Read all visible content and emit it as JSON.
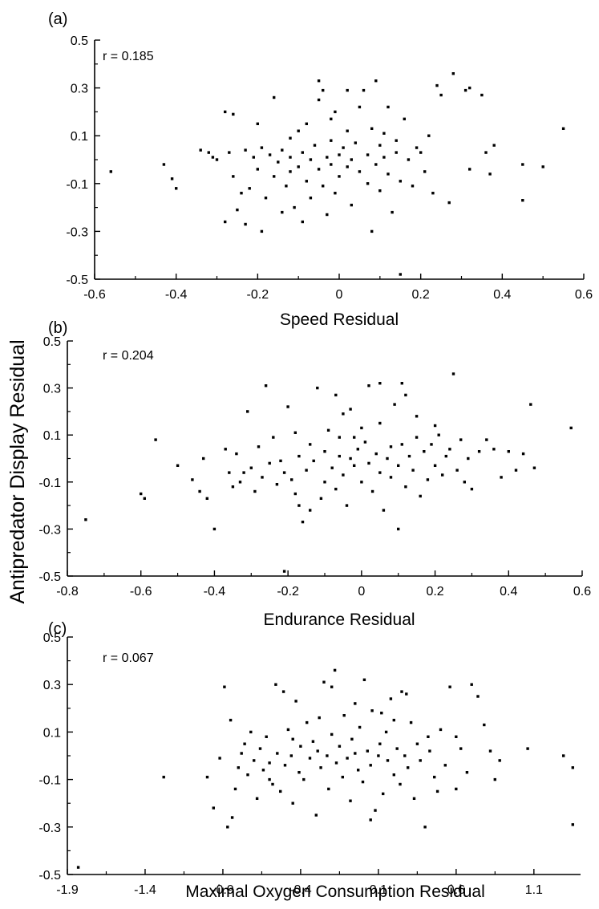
{
  "ylabel": "Antipredator Display Residual",
  "chart_data": [
    {
      "type": "scatter",
      "panel_label": "(a)",
      "annotation": "r = 0.185",
      "xlabel": "Speed Residual",
      "xlim": [
        -0.6,
        0.6
      ],
      "ylim": [
        -0.5,
        0.5
      ],
      "xticks": [
        -0.6,
        -0.4,
        -0.2,
        0,
        0.2,
        0.4,
        0.6
      ],
      "xtick_labels": [
        "-0.6",
        "-0.4",
        "-0.2",
        "0",
        "0.2",
        "0.4",
        "0.6"
      ],
      "yticks": [
        -0.5,
        -0.3,
        -0.1,
        0.1,
        0.3,
        0.5
      ],
      "ytick_labels": [
        "-0.5",
        "-0.3",
        "-0.1",
        "0.1",
        "0.3",
        "0.5"
      ],
      "points": [
        [
          -0.56,
          -0.05
        ],
        [
          -0.43,
          -0.02
        ],
        [
          -0.41,
          -0.08
        ],
        [
          -0.4,
          -0.12
        ],
        [
          -0.34,
          0.04
        ],
        [
          -0.32,
          0.03
        ],
        [
          -0.31,
          0.01
        ],
        [
          -0.3,
          0.0
        ],
        [
          -0.28,
          0.2
        ],
        [
          -0.28,
          -0.26
        ],
        [
          -0.27,
          0.03
        ],
        [
          -0.26,
          0.19
        ],
        [
          -0.26,
          -0.07
        ],
        [
          -0.25,
          -0.21
        ],
        [
          -0.24,
          -0.14
        ],
        [
          -0.23,
          0.04
        ],
        [
          -0.23,
          -0.27
        ],
        [
          -0.22,
          -0.12
        ],
        [
          -0.21,
          0.01
        ],
        [
          -0.2,
          -0.04
        ],
        [
          -0.2,
          0.15
        ],
        [
          -0.19,
          -0.3
        ],
        [
          -0.19,
          0.05
        ],
        [
          -0.18,
          -0.16
        ],
        [
          -0.17,
          0.02
        ],
        [
          -0.16,
          -0.07
        ],
        [
          -0.16,
          0.26
        ],
        [
          -0.15,
          -0.01
        ],
        [
          -0.14,
          -0.22
        ],
        [
          -0.14,
          0.04
        ],
        [
          -0.13,
          -0.11
        ],
        [
          -0.12,
          0.01
        ],
        [
          -0.12,
          -0.05
        ],
        [
          -0.11,
          -0.2
        ],
        [
          -0.1,
          0.12
        ],
        [
          -0.1,
          -0.03
        ],
        [
          -0.09,
          0.03
        ],
        [
          -0.09,
          -0.26
        ],
        [
          -0.08,
          -0.09
        ],
        [
          -0.08,
          0.15
        ],
        [
          -0.07,
          0.0
        ],
        [
          -0.07,
          -0.16
        ],
        [
          -0.06,
          0.06
        ],
        [
          -0.05,
          0.25
        ],
        [
          -0.05,
          -0.04
        ],
        [
          -0.04,
          0.29
        ],
        [
          -0.04,
          -0.11
        ],
        [
          -0.03,
          0.01
        ],
        [
          -0.03,
          -0.23
        ],
        [
          -0.02,
          0.08
        ],
        [
          -0.02,
          -0.02
        ],
        [
          -0.01,
          0.2
        ],
        [
          -0.01,
          -0.14
        ],
        [
          0.0,
          0.02
        ],
        [
          0.0,
          -0.07
        ],
        [
          0.01,
          0.05
        ],
        [
          0.02,
          -0.03
        ],
        [
          0.02,
          0.12
        ],
        [
          0.03,
          0.0
        ],
        [
          0.03,
          -0.19
        ],
        [
          0.04,
          0.07
        ],
        [
          0.05,
          -0.05
        ],
        [
          0.06,
          0.29
        ],
        [
          0.07,
          -0.1
        ],
        [
          0.07,
          0.02
        ],
        [
          0.08,
          -0.3
        ],
        [
          0.08,
          0.13
        ],
        [
          0.09,
          -0.02
        ],
        [
          0.1,
          0.06
        ],
        [
          0.1,
          -0.13
        ],
        [
          0.11,
          0.01
        ],
        [
          0.12,
          0.22
        ],
        [
          0.12,
          -0.06
        ],
        [
          0.13,
          -0.22
        ],
        [
          0.14,
          0.03
        ],
        [
          0.15,
          -0.09
        ],
        [
          0.15,
          -0.48
        ],
        [
          0.16,
          0.17
        ],
        [
          0.17,
          0.0
        ],
        [
          0.18,
          -0.11
        ],
        [
          0.19,
          0.05
        ],
        [
          0.2,
          0.03
        ],
        [
          0.21,
          -0.05
        ],
        [
          0.22,
          0.1
        ],
        [
          0.23,
          -0.14
        ],
        [
          0.24,
          0.31
        ],
        [
          0.25,
          0.27
        ],
        [
          0.27,
          -0.18
        ],
        [
          0.28,
          0.36
        ],
        [
          0.31,
          0.29
        ],
        [
          0.32,
          0.3
        ],
        [
          0.32,
          -0.04
        ],
        [
          0.35,
          0.27
        ],
        [
          0.36,
          0.03
        ],
        [
          0.37,
          -0.06
        ],
        [
          0.38,
          0.06
        ],
        [
          0.45,
          -0.02
        ],
        [
          0.45,
          -0.17
        ],
        [
          0.5,
          -0.03
        ],
        [
          0.55,
          0.13
        ],
        [
          -0.05,
          0.33
        ],
        [
          0.02,
          0.29
        ],
        [
          0.09,
          0.33
        ],
        [
          0.05,
          0.22
        ],
        [
          -0.02,
          0.17
        ],
        [
          0.11,
          0.11
        ],
        [
          -0.12,
          0.09
        ],
        [
          0.14,
          0.08
        ]
      ]
    },
    {
      "type": "scatter",
      "panel_label": "(b)",
      "annotation": "r = 0.204",
      "xlabel": "Endurance Residual",
      "xlim": [
        -0.8,
        0.6
      ],
      "ylim": [
        -0.5,
        0.5
      ],
      "xticks": [
        -0.8,
        -0.6,
        -0.4,
        -0.2,
        0,
        0.2,
        0.4,
        0.6
      ],
      "xtick_labels": [
        "-0.8",
        "-0.6",
        "-0.4",
        "-0.2",
        "0",
        "0.2",
        "0.4",
        "0.6"
      ],
      "yticks": [
        -0.5,
        -0.3,
        -0.1,
        0.1,
        0.3,
        0.5
      ],
      "ytick_labels": [
        "-0.5",
        "-0.3",
        "-0.1",
        "0.1",
        "0.3",
        "0.5"
      ],
      "points": [
        [
          -0.75,
          -0.26
        ],
        [
          -0.6,
          -0.15
        ],
        [
          -0.59,
          -0.17
        ],
        [
          -0.56,
          0.08
        ],
        [
          -0.5,
          -0.03
        ],
        [
          -0.46,
          -0.09
        ],
        [
          -0.44,
          -0.14
        ],
        [
          -0.43,
          0.0
        ],
        [
          -0.42,
          -0.17
        ],
        [
          -0.4,
          -0.3
        ],
        [
          -0.37,
          0.04
        ],
        [
          -0.36,
          -0.06
        ],
        [
          -0.35,
          -0.12
        ],
        [
          -0.34,
          0.02
        ],
        [
          -0.33,
          -0.1
        ],
        [
          -0.32,
          -0.06
        ],
        [
          -0.31,
          0.2
        ],
        [
          -0.3,
          -0.04
        ],
        [
          -0.29,
          -0.14
        ],
        [
          -0.28,
          0.05
        ],
        [
          -0.27,
          -0.08
        ],
        [
          -0.26,
          0.31
        ],
        [
          -0.25,
          -0.02
        ],
        [
          -0.24,
          0.09
        ],
        [
          -0.23,
          -0.11
        ],
        [
          -0.22,
          -0.01
        ],
        [
          -0.21,
          -0.48
        ],
        [
          -0.21,
          -0.06
        ],
        [
          -0.2,
          0.22
        ],
        [
          -0.19,
          -0.09
        ],
        [
          -0.18,
          -0.15
        ],
        [
          -0.17,
          0.01
        ],
        [
          -0.17,
          -0.2
        ],
        [
          -0.16,
          -0.27
        ],
        [
          -0.15,
          -0.05
        ],
        [
          -0.14,
          0.06
        ],
        [
          -0.14,
          -0.22
        ],
        [
          -0.13,
          -0.01
        ],
        [
          -0.12,
          0.3
        ],
        [
          -0.11,
          -0.17
        ],
        [
          -0.1,
          0.03
        ],
        [
          -0.1,
          -0.1
        ],
        [
          -0.09,
          0.12
        ],
        [
          -0.08,
          -0.04
        ],
        [
          -0.07,
          0.27
        ],
        [
          -0.07,
          -0.13
        ],
        [
          -0.06,
          0.01
        ],
        [
          -0.05,
          -0.07
        ],
        [
          -0.05,
          0.19
        ],
        [
          -0.04,
          -0.2
        ],
        [
          -0.03,
          0.0
        ],
        [
          -0.02,
          0.09
        ],
        [
          -0.02,
          -0.03
        ],
        [
          -0.01,
          0.04
        ],
        [
          0.0,
          -0.1
        ],
        [
          0.01,
          0.07
        ],
        [
          0.02,
          -0.02
        ],
        [
          0.02,
          0.31
        ],
        [
          0.03,
          -0.14
        ],
        [
          0.04,
          0.02
        ],
        [
          0.05,
          0.15
        ],
        [
          0.05,
          -0.06
        ],
        [
          0.06,
          -0.22
        ],
        [
          0.07,
          0.0
        ],
        [
          0.08,
          0.05
        ],
        [
          0.08,
          -0.08
        ],
        [
          0.09,
          0.23
        ],
        [
          0.1,
          -0.3
        ],
        [
          0.1,
          -0.03
        ],
        [
          0.11,
          0.06
        ],
        [
          0.12,
          0.27
        ],
        [
          0.12,
          -0.12
        ],
        [
          0.13,
          0.01
        ],
        [
          0.14,
          -0.05
        ],
        [
          0.15,
          0.09
        ],
        [
          0.16,
          -0.16
        ],
        [
          0.17,
          0.03
        ],
        [
          0.18,
          -0.09
        ],
        [
          0.19,
          0.06
        ],
        [
          0.2,
          -0.03
        ],
        [
          0.21,
          0.1
        ],
        [
          0.22,
          -0.07
        ],
        [
          0.23,
          0.01
        ],
        [
          0.24,
          0.04
        ],
        [
          0.25,
          0.36
        ],
        [
          0.26,
          -0.05
        ],
        [
          0.27,
          0.08
        ],
        [
          0.28,
          -0.1
        ],
        [
          0.29,
          0.0
        ],
        [
          0.3,
          -0.13
        ],
        [
          0.32,
          0.03
        ],
        [
          0.34,
          0.08
        ],
        [
          0.36,
          0.04
        ],
        [
          0.38,
          -0.08
        ],
        [
          0.4,
          0.03
        ],
        [
          0.42,
          -0.05
        ],
        [
          0.44,
          0.02
        ],
        [
          0.46,
          0.23
        ],
        [
          0.47,
          -0.04
        ],
        [
          0.57,
          0.13
        ],
        [
          0.05,
          0.32
        ],
        [
          0.11,
          0.32
        ],
        [
          -0.03,
          0.21
        ],
        [
          0.15,
          0.18
        ],
        [
          -0.18,
          0.11
        ],
        [
          0.2,
          0.14
        ],
        [
          -0.06,
          0.09
        ],
        [
          0.0,
          0.13
        ]
      ]
    },
    {
      "type": "scatter",
      "panel_label": "(c)",
      "annotation": "r = 0.067",
      "xlabel": "Maximal Oxygen Consumption Residual",
      "xlim": [
        -1.9,
        1.4
      ],
      "ylim": [
        -0.5,
        0.5
      ],
      "xticks": [
        -1.9,
        -1.4,
        -0.9,
        -0.4,
        0.1,
        0.6,
        1.1
      ],
      "xtick_labels": [
        "-1.9",
        "-1.4",
        "-0.9",
        "-0.4",
        "0.1",
        "0.6",
        "1.1"
      ],
      "yticks": [
        -0.5,
        -0.3,
        -0.1,
        0.1,
        0.3,
        0.5
      ],
      "ytick_labels": [
        "-0.5",
        "-0.3",
        "-0.1",
        "0.1",
        "0.3",
        "0.5"
      ],
      "points": [
        [
          -1.83,
          -0.47
        ],
        [
          -1.28,
          -0.09
        ],
        [
          -1.0,
          -0.09
        ],
        [
          -0.96,
          -0.22
        ],
        [
          -0.92,
          -0.01
        ],
        [
          -0.89,
          0.29
        ],
        [
          -0.87,
          -0.3
        ],
        [
          -0.85,
          0.15
        ],
        [
          -0.84,
          -0.26
        ],
        [
          -0.82,
          -0.14
        ],
        [
          -0.8,
          -0.05
        ],
        [
          -0.78,
          0.01
        ],
        [
          -0.76,
          0.05
        ],
        [
          -0.74,
          -0.08
        ],
        [
          -0.72,
          0.1
        ],
        [
          -0.7,
          -0.02
        ],
        [
          -0.68,
          -0.18
        ],
        [
          -0.66,
          0.03
        ],
        [
          -0.64,
          -0.06
        ],
        [
          -0.62,
          0.08
        ],
        [
          -0.6,
          -0.03
        ],
        [
          -0.58,
          -0.12
        ],
        [
          -0.56,
          0.3
        ],
        [
          -0.55,
          0.01
        ],
        [
          -0.53,
          -0.15
        ],
        [
          -0.51,
          0.27
        ],
        [
          -0.5,
          -0.04
        ],
        [
          -0.48,
          0.11
        ],
        [
          -0.46,
          0.0
        ],
        [
          -0.45,
          -0.2
        ],
        [
          -0.43,
          0.23
        ],
        [
          -0.41,
          -0.07
        ],
        [
          -0.4,
          0.04
        ],
        [
          -0.38,
          -0.1
        ],
        [
          -0.36,
          0.14
        ],
        [
          -0.34,
          -0.01
        ],
        [
          -0.32,
          0.06
        ],
        [
          -0.3,
          -0.25
        ],
        [
          -0.29,
          0.02
        ],
        [
          -0.27,
          -0.05
        ],
        [
          -0.25,
          0.31
        ],
        [
          -0.23,
          0.0
        ],
        [
          -0.22,
          -0.14
        ],
        [
          -0.2,
          0.09
        ],
        [
          -0.18,
          0.36
        ],
        [
          -0.17,
          -0.03
        ],
        [
          -0.15,
          0.04
        ],
        [
          -0.13,
          -0.09
        ],
        [
          -0.12,
          0.17
        ],
        [
          -0.1,
          -0.01
        ],
        [
          -0.08,
          -0.19
        ],
        [
          -0.07,
          0.07
        ],
        [
          -0.05,
          0.01
        ],
        [
          -0.03,
          -0.06
        ],
        [
          -0.02,
          0.12
        ],
        [
          0.0,
          -0.11
        ],
        [
          0.01,
          0.32
        ],
        [
          0.03,
          0.02
        ],
        [
          0.05,
          -0.04
        ],
        [
          0.06,
          0.19
        ],
        [
          0.08,
          -0.23
        ],
        [
          0.1,
          0.0
        ],
        [
          0.11,
          0.05
        ],
        [
          0.13,
          -0.16
        ],
        [
          0.15,
          0.1
        ],
        [
          0.16,
          -0.02
        ],
        [
          0.18,
          0.24
        ],
        [
          0.2,
          -0.08
        ],
        [
          0.22,
          0.03
        ],
        [
          0.24,
          -0.12
        ],
        [
          0.25,
          0.27
        ],
        [
          0.27,
          0.0
        ],
        [
          0.29,
          -0.05
        ],
        [
          0.31,
          0.14
        ],
        [
          0.33,
          -0.18
        ],
        [
          0.35,
          0.05
        ],
        [
          0.37,
          -0.02
        ],
        [
          0.4,
          -0.3
        ],
        [
          0.43,
          0.02
        ],
        [
          0.46,
          -0.09
        ],
        [
          0.5,
          0.11
        ],
        [
          0.53,
          -0.04
        ],
        [
          0.56,
          0.29
        ],
        [
          0.6,
          -0.14
        ],
        [
          0.63,
          0.03
        ],
        [
          0.67,
          -0.07
        ],
        [
          0.7,
          0.3
        ],
        [
          0.74,
          0.25
        ],
        [
          0.78,
          0.13
        ],
        [
          0.82,
          0.02
        ],
        [
          0.85,
          -0.1
        ],
        [
          0.88,
          -0.02
        ],
        [
          1.06,
          0.03
        ],
        [
          1.29,
          0.0
        ],
        [
          1.35,
          -0.05
        ],
        [
          1.35,
          -0.29
        ],
        [
          -0.2,
          0.29
        ],
        [
          0.28,
          0.26
        ],
        [
          -0.05,
          0.22
        ],
        [
          0.12,
          0.18
        ],
        [
          -0.45,
          0.07
        ],
        [
          0.42,
          0.08
        ],
        [
          0.05,
          -0.27
        ],
        [
          -0.6,
          -0.1
        ],
        [
          0.48,
          -0.15
        ],
        [
          0.2,
          0.15
        ],
        [
          -0.28,
          0.16
        ],
        [
          0.6,
          0.08
        ]
      ]
    }
  ]
}
